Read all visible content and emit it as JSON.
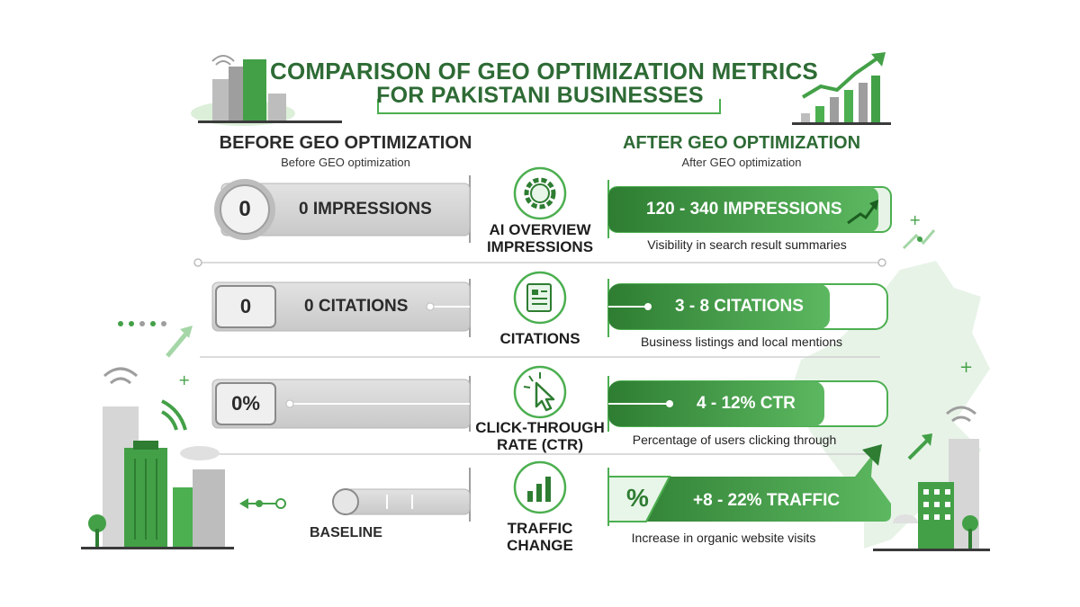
{
  "title": {
    "line1": "COMPARISON OF GEO OPTIMIZATION METRICS",
    "line2": "FOR PAKISTANI BUSINESSES"
  },
  "before": {
    "heading": "BEFORE GEO OPTIMIZATION",
    "subheading": "Before GEO optimization"
  },
  "after": {
    "heading": "AFTER GEO OPTIMIZATION",
    "subheading": "After GEO optimization"
  },
  "metrics": [
    {
      "name": "AI OVERVIEW IMPRESSIONS",
      "icon": "ai-gear-icon",
      "before_badge": "0",
      "before_label": "0 IMPRESSIONS",
      "after_label": "120 - 340 IMPRESSIONS",
      "description": "Visibility in search result summaries"
    },
    {
      "name": "CITATIONS",
      "icon": "document-icon",
      "before_badge": "0",
      "before_label": "0 CITATIONS",
      "after_label": "3 - 8 CITATIONS",
      "description": "Business listings and local mentions"
    },
    {
      "name": "CLICK-THROUGH RATE (CTR)",
      "icon": "cursor-click-icon",
      "before_badge": "0%",
      "before_label": "",
      "after_label": "4 - 12% CTR",
      "description": "Percentage of users clicking through"
    },
    {
      "name": "TRAFFIC CHANGE",
      "icon": "bar-chart-icon",
      "before_badge": "",
      "before_label": "BASELINE",
      "after_symbol": "%",
      "after_label": "+8 - 22% TRAFFIC",
      "description": "Increase in organic website visits"
    }
  ],
  "colors": {
    "green_dark": "#2e7d32",
    "green_mid": "#4caf50",
    "green_light": "#c8e6c9",
    "grey_bar": "#d6d6d6",
    "grey_dark": "#8a8a8a"
  }
}
